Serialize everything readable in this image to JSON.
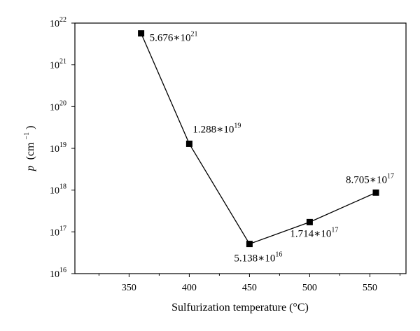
{
  "chart_data": {
    "type": "line",
    "yscale": "log",
    "xlabel": "Sulfurization temperature (°C)",
    "ylabel_symbol": "p",
    "ylabel_unit_base": "(cm",
    "ylabel_unit_exp": "−1",
    "ylabel_unit_close": ")",
    "xlim": [
      305,
      580
    ],
    "ylim": [
      1e+16,
      1e+22
    ],
    "xticks": [
      350,
      400,
      450,
      500,
      550
    ],
    "x_tick_labels": [
      "350",
      "400",
      "450",
      "500",
      "550"
    ],
    "yticks": [
      1e+16,
      1e+17,
      1e+18,
      1e+19,
      1e+20,
      1e+21,
      1e+22
    ],
    "y_tick_labels": [
      {
        "base": "10",
        "exp": "16"
      },
      {
        "base": "10",
        "exp": "17"
      },
      {
        "base": "10",
        "exp": "18"
      },
      {
        "base": "10",
        "exp": "19"
      },
      {
        "base": "10",
        "exp": "20"
      },
      {
        "base": "10",
        "exp": "21"
      },
      {
        "base": "10",
        "exp": "22"
      }
    ],
    "marker": "square",
    "line_color": "#000000",
    "points": [
      {
        "x": 360,
        "y": 5.676e+21,
        "label_base": "5.676∗10",
        "label_exp": "21"
      },
      {
        "x": 400,
        "y": 1.288e+19,
        "label_base": "1.288∗10",
        "label_exp": "19"
      },
      {
        "x": 450,
        "y": 5.138e+16,
        "label_base": "5.138∗10",
        "label_exp": "16"
      },
      {
        "x": 500,
        "y": 1.714e+17,
        "label_base": "1.714∗10",
        "label_exp": "17"
      },
      {
        "x": 555,
        "y": 8.705e+17,
        "label_base": "8.705∗10",
        "label_exp": "17"
      }
    ]
  }
}
